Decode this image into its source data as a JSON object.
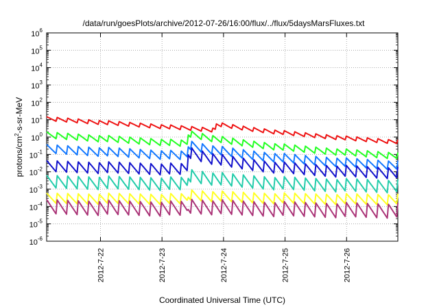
{
  "chart_data": {
    "type": "line",
    "title": "/data/run/goesPlots/archive/2012-07-26/16:00/flux/../flux/5daysMarsFluxes.txt",
    "xlabel": "Coordinated Universal Time (UTC)",
    "ylabel": {
      "text1": "protons/cm",
      "sup": "2",
      "text2": "-s-sr-MeV"
    },
    "y_scale": "log",
    "ylim_exp": [
      -6,
      6
    ],
    "y_ticks": [
      {
        "base": "10",
        "exp": "-6"
      },
      {
        "base": "10",
        "exp": "-5"
      },
      {
        "base": "10",
        "exp": "-4"
      },
      {
        "base": "10",
        "exp": "-3"
      },
      {
        "base": "10",
        "exp": "-2"
      },
      {
        "base": "10",
        "exp": "-1"
      },
      {
        "base": "10",
        "exp": "0"
      },
      {
        "base": "10",
        "exp": "1"
      },
      {
        "base": "10",
        "exp": "2"
      },
      {
        "base": "10",
        "exp": "3"
      },
      {
        "base": "10",
        "exp": "4"
      },
      {
        "base": "10",
        "exp": "5"
      },
      {
        "base": "10",
        "exp": "6"
      }
    ],
    "x_ticks": [
      "2012-7-22",
      "2012-7-23",
      "2012-7-24",
      "2012-7-25",
      "2012-7-26"
    ],
    "xlim": [
      "2012-07-21 03:00",
      "2012-07-26 20:00"
    ],
    "grid": true,
    "series": [
      {
        "color": "#ee1111",
        "width": 2.0,
        "start_log": 1.05,
        "end_log": -0.3,
        "amplitude": 0.25,
        "jump_at": 0.48,
        "jump": 0.35
      },
      {
        "color": "#22ff22",
        "width": 2.0,
        "start_log": 0.1,
        "end_log": -1.1,
        "amplitude": 0.4,
        "jump_at": 0.4,
        "jump": 0.6
      },
      {
        "color": "#1177ff",
        "width": 2.0,
        "start_log": -0.7,
        "end_log": -1.65,
        "amplitude": 0.55,
        "jump_at": 0.4,
        "jump": 0.65
      },
      {
        "color": "#1111cc",
        "width": 2.0,
        "start_log": -1.7,
        "end_log": -2.1,
        "amplitude": 0.7,
        "jump_at": 0.4,
        "jump": 1.0
      },
      {
        "color": "#22ccaa",
        "width": 2.0,
        "start_log": -2.6,
        "end_log": -2.85,
        "amplitude": 0.8,
        "jump_at": 0.4,
        "jump": 0.5
      },
      {
        "color": "#ffff22",
        "width": 2.0,
        "start_log": -3.55,
        "end_log": -3.6,
        "amplitude": 0.65,
        "jump_at": 0.4,
        "jump": 0.25
      },
      {
        "color": "#aa3377",
        "width": 2.0,
        "start_log": -4.05,
        "end_log": -4.25,
        "amplitude": 0.9,
        "jump_at": 0.4,
        "jump": 0.15
      }
    ]
  }
}
